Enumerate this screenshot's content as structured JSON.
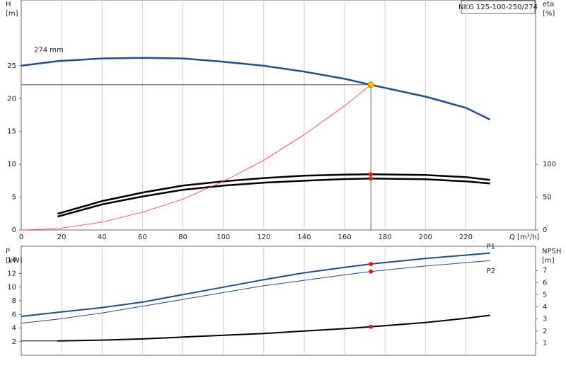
{
  "chart_data": [
    {
      "type": "line",
      "model": "NKG 125-100-250/274",
      "xlabel": "Q [m³/h]",
      "ylabel": "H",
      "yunit": "[m]",
      "y2label": "eta",
      "y2unit": "[%]",
      "x": [
        0,
        18,
        40,
        60,
        80,
        100,
        120,
        140,
        160,
        173,
        200,
        220,
        232
      ],
      "series": [
        {
          "name": "274 mm",
          "color": "#1f4e8c",
          "width": 2.5,
          "values": [
            25.0,
            25.7,
            26.1,
            26.2,
            26.1,
            25.6,
            25.0,
            24.1,
            23.0,
            22.1,
            20.3,
            18.6,
            16.8
          ]
        },
        {
          "color": "#000000",
          "width": 2.5,
          "axis": "y2",
          "values": [
            null,
            24.7,
            44,
            57,
            67.6,
            74,
            79,
            82.6,
            84.2,
            84.8,
            83.7,
            80.5,
            76.2
          ]
        },
        {
          "color": "#000000",
          "width": 2.5,
          "axis": "y2",
          "values": [
            null,
            20.4,
            39,
            51,
            61.2,
            67.6,
            72,
            75,
            77.5,
            78.3,
            77.2,
            74,
            70.8
          ]
        },
        {
          "color": "#ff3333",
          "width": 0.8,
          "values": [
            0,
            0.2,
            1.2,
            2.7,
            4.7,
            7.4,
            10.6,
            14.5,
            18.9,
            22.1,
            null,
            null,
            null
          ]
        }
      ],
      "highlight_x": 173,
      "xlim": [
        0,
        254.5
      ],
      "xticks": [
        0,
        20,
        40,
        60,
        80,
        100,
        120,
        140,
        160,
        180,
        200,
        220
      ],
      "ylim": [
        0,
        35
      ],
      "yticks": [
        0,
        5,
        10,
        15,
        20,
        25
      ],
      "y2lim": [
        0,
        350
      ],
      "y2ticks": [
        0,
        50,
        100
      ],
      "grid": true
    },
    {
      "type": "line",
      "ylabel": "P",
      "yunit": "[kW]",
      "y2label": "NPSH",
      "y2unit": "[m]",
      "x": [
        0,
        18,
        40,
        60,
        80,
        100,
        120,
        140,
        160,
        173,
        200,
        220,
        232
      ],
      "series": [
        {
          "name": "P1",
          "color": "#1f4e8c",
          "width": 2,
          "values": [
            5.7,
            6.3,
            7.0,
            7.8,
            8.9,
            10.0,
            11.1,
            12.1,
            12.9,
            13.4,
            14.2,
            14.7,
            15.0
          ]
        },
        {
          "name": "P2",
          "color": "#1f4e8c",
          "width": 1,
          "values": [
            4.7,
            5.3,
            6.2,
            7.2,
            8.2,
            9.2,
            10.2,
            11.0,
            11.8,
            12.3,
            13.1,
            13.6,
            13.9
          ]
        },
        {
          "color": "#000000",
          "width": 2,
          "axis": "y2",
          "values": [
            null,
            1.18,
            1.25,
            1.35,
            1.5,
            1.65,
            1.8,
            2.0,
            2.2,
            2.35,
            2.7,
            3.05,
            3.3
          ]
        }
      ],
      "highlight_x": 173,
      "xlim": [
        0,
        254.5
      ],
      "ylim": [
        0,
        16
      ],
      "yticks": [
        2,
        4,
        6,
        8,
        10,
        12,
        14
      ],
      "y2lim": [
        0,
        9
      ],
      "y2ticks": [
        1,
        2,
        3,
        4,
        5,
        6,
        7
      ],
      "grid": true
    }
  ]
}
